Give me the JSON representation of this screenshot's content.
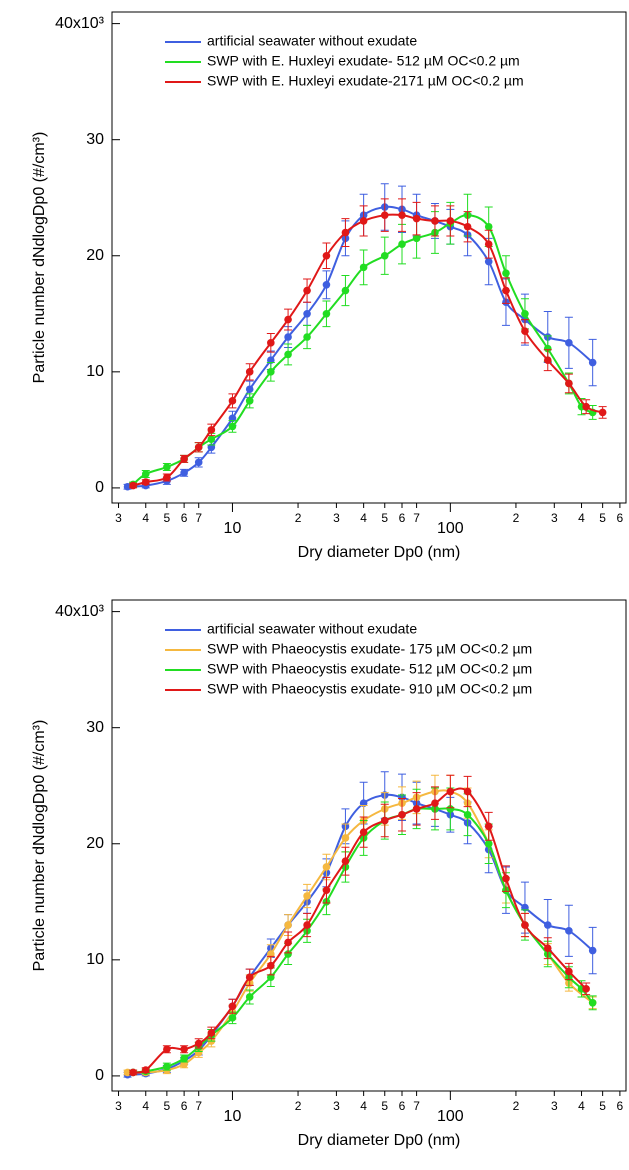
{
  "chart_data": [
    {
      "type": "line",
      "xlabel": "Dry diameter Dp0  (nm)",
      "ylabel": "Particle number dNdlogDp0  (#/cm³)",
      "xscale": "log",
      "legend": "upper left",
      "xlim": [
        2.8,
        640
      ],
      "ylim": [
        -1.3,
        41
      ],
      "xticks": [
        {
          "value": 3,
          "label": "3"
        },
        {
          "value": 4,
          "label": "4"
        },
        {
          "value": 5,
          "label": "5"
        },
        {
          "value": 6,
          "label": "6"
        },
        {
          "value": 7,
          "label": "7"
        },
        10,
        {
          "value": 20,
          "label": "2"
        },
        {
          "value": 30,
          "label": "3"
        },
        {
          "value": 40,
          "label": "4"
        },
        {
          "value": 50,
          "label": "5"
        },
        {
          "value": 60,
          "label": "6"
        },
        {
          "value": 70,
          "label": "7"
        },
        100,
        {
          "value": 200,
          "label": "2"
        },
        {
          "value": 300,
          "label": "3"
        },
        {
          "value": 400,
          "label": "4"
        },
        {
          "value": 500,
          "label": "5"
        },
        {
          "value": 600,
          "label": "6"
        }
      ],
      "yticks": [
        0,
        10,
        20,
        30,
        {
          "value": 40,
          "label": "40x10³"
        }
      ],
      "series": [
        {
          "name": "artificial seawater without exudate",
          "color": "#3f5fe0",
          "x": [
            3.3,
            4,
            5,
            6,
            7,
            8,
            10,
            12,
            15,
            18,
            22,
            27,
            33,
            40,
            50,
            60,
            70,
            85,
            100,
            120,
            150,
            180,
            220,
            280,
            350,
            450
          ],
          "values": [
            0.1,
            0.2,
            0.6,
            1.3,
            2.2,
            3.5,
            6,
            8.5,
            11,
            13,
            15,
            17.5,
            21.5,
            23.5,
            24.2,
            24,
            23.5,
            23,
            22.5,
            21.8,
            19.5,
            16,
            14.5,
            13,
            12.5,
            10.8
          ],
          "errors": [
            0.2,
            0.2,
            0.3,
            0.3,
            0.4,
            0.5,
            0.6,
            0.7,
            0.8,
            0.9,
            1,
            1.2,
            1.5,
            1.8,
            2,
            2,
            1.8,
            1.5,
            1.5,
            1.8,
            2,
            2,
            2.2,
            2.2,
            2.2,
            2
          ]
        },
        {
          "name": "SWP with E. Huxleyi exudate- 512  µM OC<0.2 µm",
          "color": "#22dd22",
          "x": [
            3.5,
            4,
            5,
            6,
            7,
            8,
            10,
            12,
            15,
            18,
            22,
            27,
            33,
            40,
            50,
            60,
            70,
            85,
            100,
            120,
            150,
            180,
            220,
            280,
            350,
            400,
            450
          ],
          "values": [
            0.3,
            1.2,
            1.8,
            2.5,
            3.5,
            4.2,
            5.3,
            7.5,
            10,
            11.5,
            13,
            15,
            17,
            19,
            20,
            21,
            21.5,
            22,
            22.8,
            23.5,
            22.5,
            18.5,
            15,
            12,
            9,
            7,
            6.5
          ],
          "errors": [
            0.2,
            0.3,
            0.3,
            0.3,
            0.4,
            0.5,
            0.5,
            0.6,
            0.8,
            0.9,
            1,
            1.1,
            1.3,
            1.5,
            1.6,
            1.7,
            1.7,
            1.8,
            1.8,
            1.8,
            1.7,
            1.5,
            1.3,
            1.1,
            0.9,
            0.7,
            0.6
          ]
        },
        {
          "name": "SWP with E. Huxleyi exudate-2171 µM OC<0.2 µm",
          "color": "#e01818",
          "x": [
            3.5,
            4,
            5,
            6,
            7,
            8,
            10,
            12,
            15,
            18,
            22,
            27,
            33,
            40,
            50,
            60,
            70,
            85,
            100,
            120,
            150,
            180,
            220,
            280,
            350,
            420,
            500
          ],
          "values": [
            0.2,
            0.5,
            0.9,
            2.5,
            3.5,
            5,
            7.5,
            10,
            12.5,
            14.5,
            17,
            20,
            22,
            23,
            23.5,
            23.5,
            23.2,
            23,
            23,
            22.5,
            21,
            17,
            13.5,
            11,
            9,
            7,
            6.5
          ],
          "errors": [
            0.2,
            0.2,
            0.3,
            0.3,
            0.4,
            0.5,
            0.6,
            0.7,
            0.8,
            0.9,
            1,
            1.1,
            1.2,
            1.3,
            1.4,
            1.4,
            1.4,
            1.3,
            1.3,
            1.3,
            1.2,
            1.1,
            1,
            0.9,
            0.8,
            0.6,
            0.5
          ]
        }
      ]
    },
    {
      "type": "line",
      "xlabel": "Dry diameter Dp0  (nm)",
      "ylabel": "Particle number dNdlogDp0  (#/cm³)",
      "xscale": "log",
      "legend": "upper left",
      "xlim": [
        2.8,
        640
      ],
      "ylim": [
        -1.3,
        41
      ],
      "xticks": [
        {
          "value": 3,
          "label": "3"
        },
        {
          "value": 4,
          "label": "4"
        },
        {
          "value": 5,
          "label": "5"
        },
        {
          "value": 6,
          "label": "6"
        },
        {
          "value": 7,
          "label": "7"
        },
        10,
        {
          "value": 20,
          "label": "2"
        },
        {
          "value": 30,
          "label": "3"
        },
        {
          "value": 40,
          "label": "4"
        },
        {
          "value": 50,
          "label": "5"
        },
        {
          "value": 60,
          "label": "6"
        },
        {
          "value": 70,
          "label": "7"
        },
        100,
        {
          "value": 200,
          "label": "2"
        },
        {
          "value": 300,
          "label": "3"
        },
        {
          "value": 400,
          "label": "4"
        },
        {
          "value": 500,
          "label": "5"
        },
        {
          "value": 600,
          "label": "6"
        }
      ],
      "yticks": [
        0,
        10,
        20,
        30,
        {
          "value": 40,
          "label": "40x10³"
        }
      ],
      "series": [
        {
          "name": "artificial seawater without exudate",
          "color": "#3f5fe0",
          "x": [
            3.3,
            4,
            5,
            6,
            7,
            8,
            10,
            12,
            15,
            18,
            22,
            27,
            33,
            40,
            50,
            60,
            70,
            85,
            100,
            120,
            150,
            180,
            220,
            280,
            350,
            450
          ],
          "values": [
            0.1,
            0.2,
            0.6,
            1.3,
            2.2,
            3.5,
            6,
            8.5,
            11,
            13,
            15,
            17.5,
            21.5,
            23.5,
            24.2,
            24,
            23.5,
            23,
            22.5,
            21.8,
            19.5,
            16,
            14.5,
            13,
            12.5,
            10.8
          ],
          "errors": [
            0.2,
            0.2,
            0.3,
            0.3,
            0.4,
            0.5,
            0.6,
            0.7,
            0.8,
            0.9,
            1,
            1.2,
            1.5,
            1.8,
            2,
            2,
            1.8,
            1.5,
            1.5,
            1.8,
            2,
            2,
            2.2,
            2.2,
            2.2,
            2
          ]
        },
        {
          "name": "SWP with Phaeocystis exudate- 175 µM OC<0.2 µm",
          "color": "#f5b840",
          "x": [
            3.3,
            4,
            5,
            6,
            7,
            8,
            10,
            12,
            15,
            18,
            22,
            27,
            33,
            40,
            50,
            60,
            70,
            85,
            100,
            120,
            150,
            180,
            220,
            280,
            350,
            450
          ],
          "values": [
            0.3,
            0.3,
            0.5,
            1,
            2,
            3,
            5.5,
            8,
            10.5,
            13,
            15.5,
            18,
            20.5,
            22,
            23,
            23.5,
            24,
            24.5,
            24.5,
            23.5,
            20,
            16,
            13,
            10.5,
            8,
            6.3
          ],
          "errors": [
            0.2,
            0.2,
            0.3,
            0.3,
            0.4,
            0.5,
            0.6,
            0.7,
            0.8,
            0.9,
            1,
            1.1,
            1.2,
            1.3,
            1.4,
            1.4,
            1.4,
            1.4,
            1.4,
            1.3,
            1.2,
            1.1,
            1,
            0.9,
            0.7,
            0.5
          ]
        },
        {
          "name": "SWP with Phaeocystis exudate- 512 µM OC<0.2 µm",
          "color": "#22dd22",
          "x": [
            3.5,
            4,
            5,
            6,
            7,
            8,
            10,
            12,
            15,
            18,
            22,
            27,
            33,
            40,
            50,
            60,
            70,
            85,
            100,
            120,
            150,
            180,
            220,
            280,
            350,
            400,
            450
          ],
          "values": [
            0.3,
            0.4,
            0.8,
            1.5,
            2.5,
            3.5,
            5,
            6.8,
            8.5,
            10.5,
            12.5,
            15,
            18,
            20.5,
            22,
            22.5,
            23,
            23,
            23,
            22.5,
            20,
            16,
            13,
            10.5,
            8.5,
            7.5,
            6.3
          ],
          "errors": [
            0.2,
            0.2,
            0.3,
            0.3,
            0.4,
            0.5,
            0.5,
            0.6,
            0.8,
            0.9,
            1,
            1.1,
            1.3,
            1.5,
            1.6,
            1.7,
            1.7,
            1.8,
            1.8,
            1.8,
            1.7,
            1.5,
            1.3,
            1.1,
            0.9,
            0.7,
            0.6
          ]
        },
        {
          "name": "SWP with Phaeocystis exudate- 910 µM OC<0.2 µm",
          "color": "#e01818",
          "x": [
            3.5,
            4,
            5,
            6,
            7,
            8,
            10,
            12,
            15,
            18,
            22,
            27,
            33,
            40,
            50,
            60,
            70,
            85,
            100,
            120,
            150,
            180,
            220,
            280,
            350,
            420
          ],
          "values": [
            0.3,
            0.5,
            2.3,
            2.3,
            2.8,
            3.7,
            6,
            8.5,
            9.5,
            11.5,
            13,
            16,
            18.5,
            21,
            22,
            22.5,
            23,
            23.5,
            24.5,
            24.5,
            21.5,
            17,
            13,
            11,
            9,
            7.5
          ],
          "errors": [
            0.2,
            0.2,
            0.3,
            0.3,
            0.4,
            0.5,
            0.6,
            0.7,
            0.8,
            0.9,
            1,
            1.1,
            1.2,
            1.3,
            1.4,
            1.4,
            1.4,
            1.4,
            1.4,
            1.3,
            1.2,
            1.1,
            1,
            0.9,
            0.7,
            0.5
          ]
        }
      ]
    }
  ]
}
